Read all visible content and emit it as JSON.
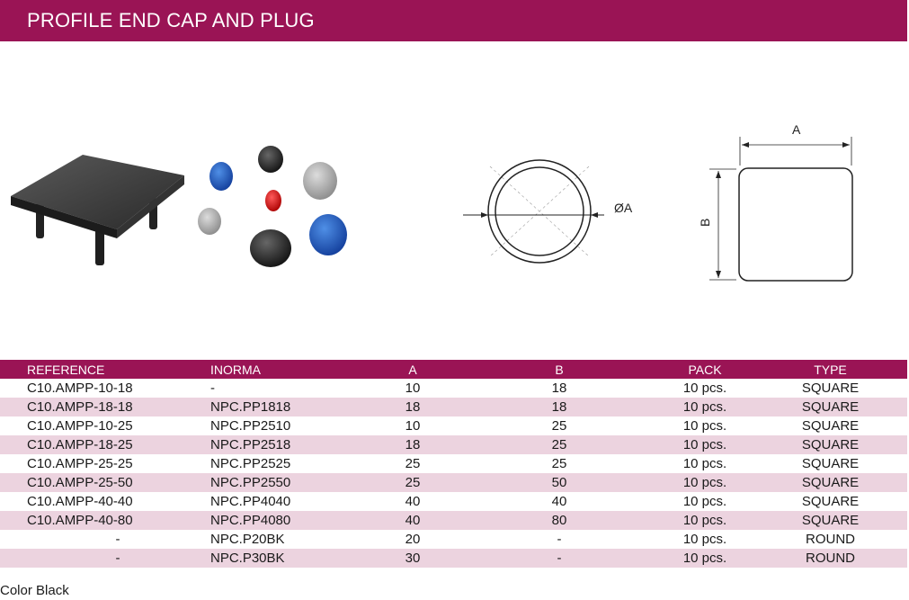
{
  "title": "PROFILE END CAP AND PLUG",
  "diagram": {
    "round_label": "ØA",
    "dim_a": "A",
    "dim_b": "B"
  },
  "table": {
    "headers": {
      "reference": "REFERENCE",
      "inorma": "INORMA",
      "a": "A",
      "b": "B",
      "pack": "PACK",
      "type": "TYPE"
    },
    "rows": [
      {
        "reference": "C10.AMPP-10-18",
        "inorma": "-",
        "a": "10",
        "b": "18",
        "pack": "10 pcs.",
        "type": "SQUARE"
      },
      {
        "reference": "C10.AMPP-18-18",
        "inorma": "NPC.PP1818",
        "a": "18",
        "b": "18",
        "pack": "10 pcs.",
        "type": "SQUARE"
      },
      {
        "reference": "C10.AMPP-10-25",
        "inorma": "NPC.PP2510",
        "a": "10",
        "b": "25",
        "pack": "10 pcs.",
        "type": "SQUARE"
      },
      {
        "reference": "C10.AMPP-18-25",
        "inorma": "NPC.PP2518",
        "a": "18",
        "b": "25",
        "pack": "10 pcs.",
        "type": "SQUARE"
      },
      {
        "reference": "C10.AMPP-25-25",
        "inorma": "NPC.PP2525",
        "a": "25",
        "b": "25",
        "pack": "10 pcs.",
        "type": "SQUARE"
      },
      {
        "reference": "C10.AMPP-25-50",
        "inorma": "NPC.PP2550",
        "a": "25",
        "b": "50",
        "pack": "10 pcs.",
        "type": "SQUARE"
      },
      {
        "reference": "C10.AMPP-40-40",
        "inorma": "NPC.PP4040",
        "a": "40",
        "b": "40",
        "pack": "10 pcs.",
        "type": "SQUARE"
      },
      {
        "reference": "C10.AMPP-40-80",
        "inorma": "NPC.PP4080",
        "a": "40",
        "b": "80",
        "pack": "10 pcs.",
        "type": "SQUARE"
      },
      {
        "reference": "-",
        "inorma": "NPC.P20BK",
        "a": "20",
        "b": "-",
        "pack": "10 pcs.",
        "type": "ROUND"
      },
      {
        "reference": "-",
        "inorma": "NPC.P30BK",
        "a": "30",
        "b": "-",
        "pack": "10 pcs.",
        "type": "ROUND"
      }
    ]
  },
  "note": "Color Black",
  "colors": {
    "brand": "#9a1455",
    "row_alt": "#ecd3df"
  }
}
